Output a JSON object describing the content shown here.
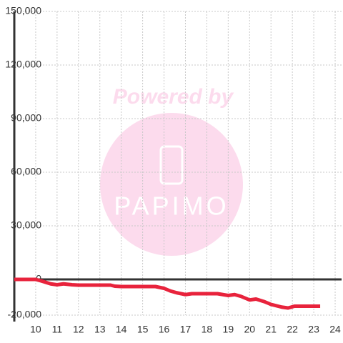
{
  "chart_data": {
    "type": "line",
    "x": [
      9.0,
      10.0,
      10.3,
      10.7,
      11.0,
      11.3,
      11.7,
      12.0,
      13.0,
      13.5,
      13.7,
      14.0,
      15.0,
      15.6,
      16.0,
      16.3,
      16.6,
      17.0,
      17.3,
      18.0,
      18.5,
      19.0,
      19.3,
      19.6,
      20.0,
      20.3,
      20.7,
      21.0,
      21.5,
      21.8,
      22.1,
      22.5,
      23.3
    ],
    "series": [
      {
        "color": "#e8233c",
        "values": [
          0,
          0,
          -1000,
          -2500,
          -3000,
          -2500,
          -3000,
          -3200,
          -3200,
          -3200,
          -3800,
          -4000,
          -4000,
          -4000,
          -5000,
          -6500,
          -7500,
          -8500,
          -8000,
          -8000,
          -8000,
          -9000,
          -8500,
          -9500,
          -11500,
          -11000,
          -12500,
          -14000,
          -15500,
          -16000,
          -15000,
          -15000,
          -15000
        ]
      }
    ],
    "xlim": [
      9,
      24.3
    ],
    "xticks": [
      10,
      11,
      12,
      13,
      14,
      15,
      16,
      17,
      18,
      19,
      20,
      21,
      22,
      23,
      24
    ],
    "ylim": [
      -20000,
      150000
    ],
    "yticks": [
      {
        "value": -20000,
        "label": "-20,000"
      },
      0,
      {
        "value": 30000,
        "label": "30,000"
      },
      {
        "value": 60000,
        "label": "60,000"
      },
      {
        "value": 90000,
        "label": "90,000"
      },
      {
        "value": 120000,
        "label": "120,000"
      },
      {
        "value": 150000,
        "label": "150,000"
      }
    ],
    "grid": true,
    "watermark": {
      "caption": "Powered by",
      "brand": "PAPIMO"
    }
  }
}
